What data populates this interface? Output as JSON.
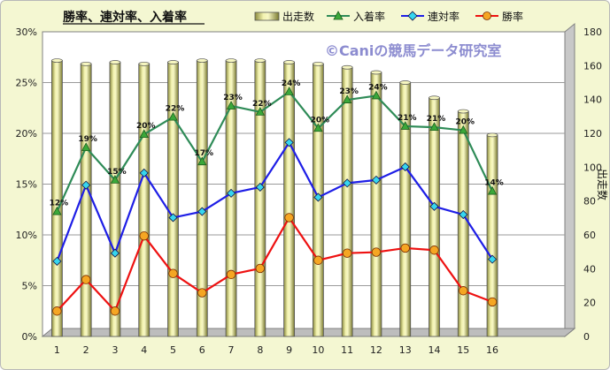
{
  "chart_data": {
    "type": "bar",
    "title": "勝率、連対率、入着率",
    "watermark": "©Caniの競馬データ研究室",
    "categories": [
      "1",
      "2",
      "3",
      "4",
      "5",
      "6",
      "7",
      "8",
      "9",
      "10",
      "11",
      "12",
      "13",
      "14",
      "15",
      "16"
    ],
    "y_left": {
      "ticks": [
        "0%",
        "5%",
        "10%",
        "15%",
        "20%",
        "25%",
        "30%"
      ],
      "ylim": [
        0,
        30
      ],
      "unit": "%"
    },
    "y_right": {
      "label": "出走数",
      "ticks": [
        "0",
        "20",
        "40",
        "60",
        "80",
        "100",
        "120",
        "140",
        "160",
        "180"
      ],
      "ylim": [
        0,
        180
      ]
    },
    "grid": true,
    "legend_position": "top",
    "series": [
      {
        "name": "出走数",
        "type": "bar",
        "axis": "right",
        "color": "#f0f0a8",
        "values": [
          163,
          161,
          162,
          161,
          162,
          163,
          163,
          163,
          162,
          161,
          159,
          156,
          150,
          141,
          133,
          119
        ]
      },
      {
        "name": "入着率",
        "type": "line",
        "axis": "left",
        "color": "#2e8b57",
        "marker": "triangle",
        "values": [
          12.3,
          18.6,
          15.4,
          19.9,
          21.6,
          17.2,
          22.7,
          22.1,
          24.1,
          20.5,
          23.3,
          23.7,
          20.7,
          20.6,
          20.3,
          14.3
        ],
        "labels": [
          "12%",
          "19%",
          "15%",
          "20%",
          "22%",
          "17%",
          "23%",
          "22%",
          "24%",
          "20%",
          "23%",
          "24%",
          "21%",
          "21%",
          "20%",
          "14%"
        ]
      },
      {
        "name": "連対率",
        "type": "line",
        "axis": "left",
        "color": "#1e1ee6",
        "marker": "diamond",
        "values": [
          7.4,
          14.9,
          8.2,
          16.1,
          11.7,
          12.3,
          14.1,
          14.7,
          19.1,
          13.7,
          15.1,
          15.4,
          16.7,
          12.8,
          12.0,
          7.6
        ]
      },
      {
        "name": "勝率",
        "type": "line",
        "axis": "left",
        "color": "#ee1111",
        "marker": "circle",
        "values": [
          2.5,
          5.6,
          2.5,
          9.9,
          6.2,
          4.3,
          6.1,
          6.7,
          11.7,
          7.5,
          8.2,
          8.3,
          8.7,
          8.5,
          4.5,
          3.4
        ]
      }
    ]
  }
}
